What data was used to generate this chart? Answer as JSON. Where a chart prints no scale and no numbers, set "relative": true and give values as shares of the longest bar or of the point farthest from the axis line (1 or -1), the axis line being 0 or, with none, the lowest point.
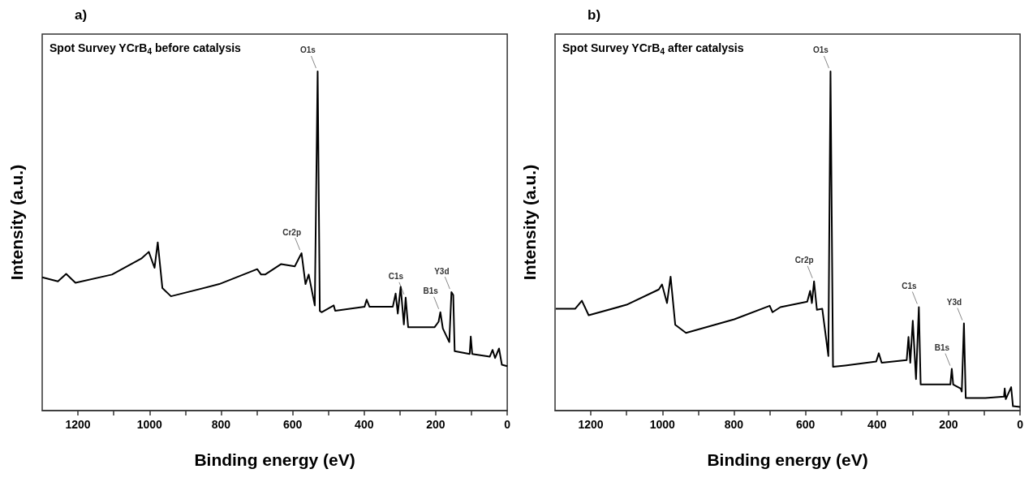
{
  "chart_data": [
    {
      "type": "line",
      "title": "Spot Survey YCrB$_{4}$ before catalysis",
      "xlabel": "Binding energy (eV)",
      "ylabel": "Intensity (a.u.)",
      "relative": true,
      "grid": false,
      "marker": "none",
      "line_style": "solid",
      "xlim": [
        1300,
        0
      ],
      "xticks": [
        {
          "value": 1100,
          "label": null
        },
        1200,
        1000,
        {
          "value": 900,
          "label": null
        },
        800,
        {
          "value": 700,
          "label": null
        },
        600,
        {
          "value": 500,
          "label": null
        },
        400,
        {
          "value": 300,
          "label": null
        },
        200,
        {
          "value": 100,
          "label": null
        },
        0
      ],
      "x": [
        1300,
        1256,
        1233,
        1207,
        1105,
        1023,
        1002,
        986,
        977,
        964,
        940,
        805,
        699,
        688,
        677,
        632,
        594,
        583,
        575,
        564,
        555,
        538,
        530,
        524,
        519,
        485,
        481,
        399,
        393,
        385,
        320,
        312,
        306,
        298,
        289,
        284,
        277,
        203,
        192,
        187,
        180,
        162,
        156,
        151,
        147,
        105,
        102,
        98,
        49,
        41,
        34,
        23,
        15,
        0
      ],
      "series": [
        {
          "color": "#000000",
          "values": [
            0.393,
            0.381,
            0.403,
            0.377,
            0.401,
            0.448,
            0.468,
            0.421,
            0.496,
            0.361,
            0.337,
            0.373,
            0.417,
            0.401,
            0.401,
            0.432,
            0.425,
            0.448,
            0.464,
            0.373,
            0.401,
            0.31,
            1.0,
            0.294,
            0.29,
            0.31,
            0.294,
            0.306,
            0.327,
            0.306,
            0.306,
            0.345,
            0.286,
            0.365,
            0.254,
            0.333,
            0.246,
            0.246,
            0.262,
            0.29,
            0.242,
            0.202,
            0.349,
            0.341,
            0.175,
            0.167,
            0.218,
            0.167,
            0.159,
            0.179,
            0.155,
            0.183,
            0.135,
            0.131
          ]
        }
      ],
      "annotations": [
        "a)",
        {
          "text": "O1s",
          "x": 530,
          "y": 1.0
        },
        {
          "text": "Cr2p",
          "x": 575,
          "y": 0.464
        },
        {
          "text": "C1s",
          "x": 284,
          "y": 0.333
        },
        {
          "text": "B1s",
          "x": 187,
          "y": 0.29
        },
        {
          "text": "Y3d",
          "x": 156,
          "y": 0.349
        }
      ]
    },
    {
      "type": "line",
      "title": "Spot Survey YCrB$_{4}$ after catalysis",
      "xlabel": "Binding energy (eV)",
      "ylabel": "Intensity (a.u.)",
      "relative": true,
      "grid": false,
      "marker": "none",
      "line_style": "solid",
      "xlim": [
        1300,
        0
      ],
      "xticks": [
        {
          "value": 1100,
          "label": null
        },
        1200,
        1000,
        {
          "value": 900,
          "label": null
        },
        800,
        {
          "value": 700,
          "label": null
        },
        600,
        {
          "value": 500,
          "label": null
        },
        400,
        {
          "value": 300,
          "label": null
        },
        200,
        {
          "value": 100,
          "label": null
        },
        0
      ],
      "x": [
        1298,
        1244,
        1225,
        1206,
        1100,
        1010,
        1001,
        987,
        977,
        964,
        934,
        799,
        700,
        692,
        670,
        595,
        587,
        582,
        576,
        568,
        553,
        536,
        530,
        523,
        489,
        402,
        395,
        387,
        317,
        312,
        307,
        300,
        291,
        283,
        278,
        242,
        195,
        191,
        187,
        166,
        163,
        157,
        152,
        97,
        45,
        43,
        40,
        25,
        20,
        0
      ],
      "series": [
        {
          "color": "#000000",
          "values": [
            0.3,
            0.3,
            0.324,
            0.281,
            0.312,
            0.357,
            0.372,
            0.317,
            0.395,
            0.253,
            0.229,
            0.269,
            0.309,
            0.29,
            0.305,
            0.321,
            0.353,
            0.317,
            0.381,
            0.297,
            0.3,
            0.161,
            1.0,
            0.129,
            0.133,
            0.145,
            0.169,
            0.141,
            0.149,
            0.217,
            0.141,
            0.265,
            0.093,
            0.305,
            0.077,
            0.077,
            0.077,
            0.123,
            0.077,
            0.065,
            0.056,
            0.257,
            0.037,
            0.037,
            0.041,
            0.065,
            0.034,
            0.069,
            0.013,
            0.011
          ]
        }
      ],
      "annotations": [
        "b)",
        {
          "text": "O1s",
          "x": 530,
          "y": 1.0
        },
        {
          "text": "Cr2p",
          "x": 576,
          "y": 0.381
        },
        {
          "text": "C1s",
          "x": 283,
          "y": 0.305
        },
        {
          "text": "B1s",
          "x": 191,
          "y": 0.123
        },
        {
          "text": "Y3d",
          "x": 157,
          "y": 0.257
        }
      ]
    }
  ]
}
